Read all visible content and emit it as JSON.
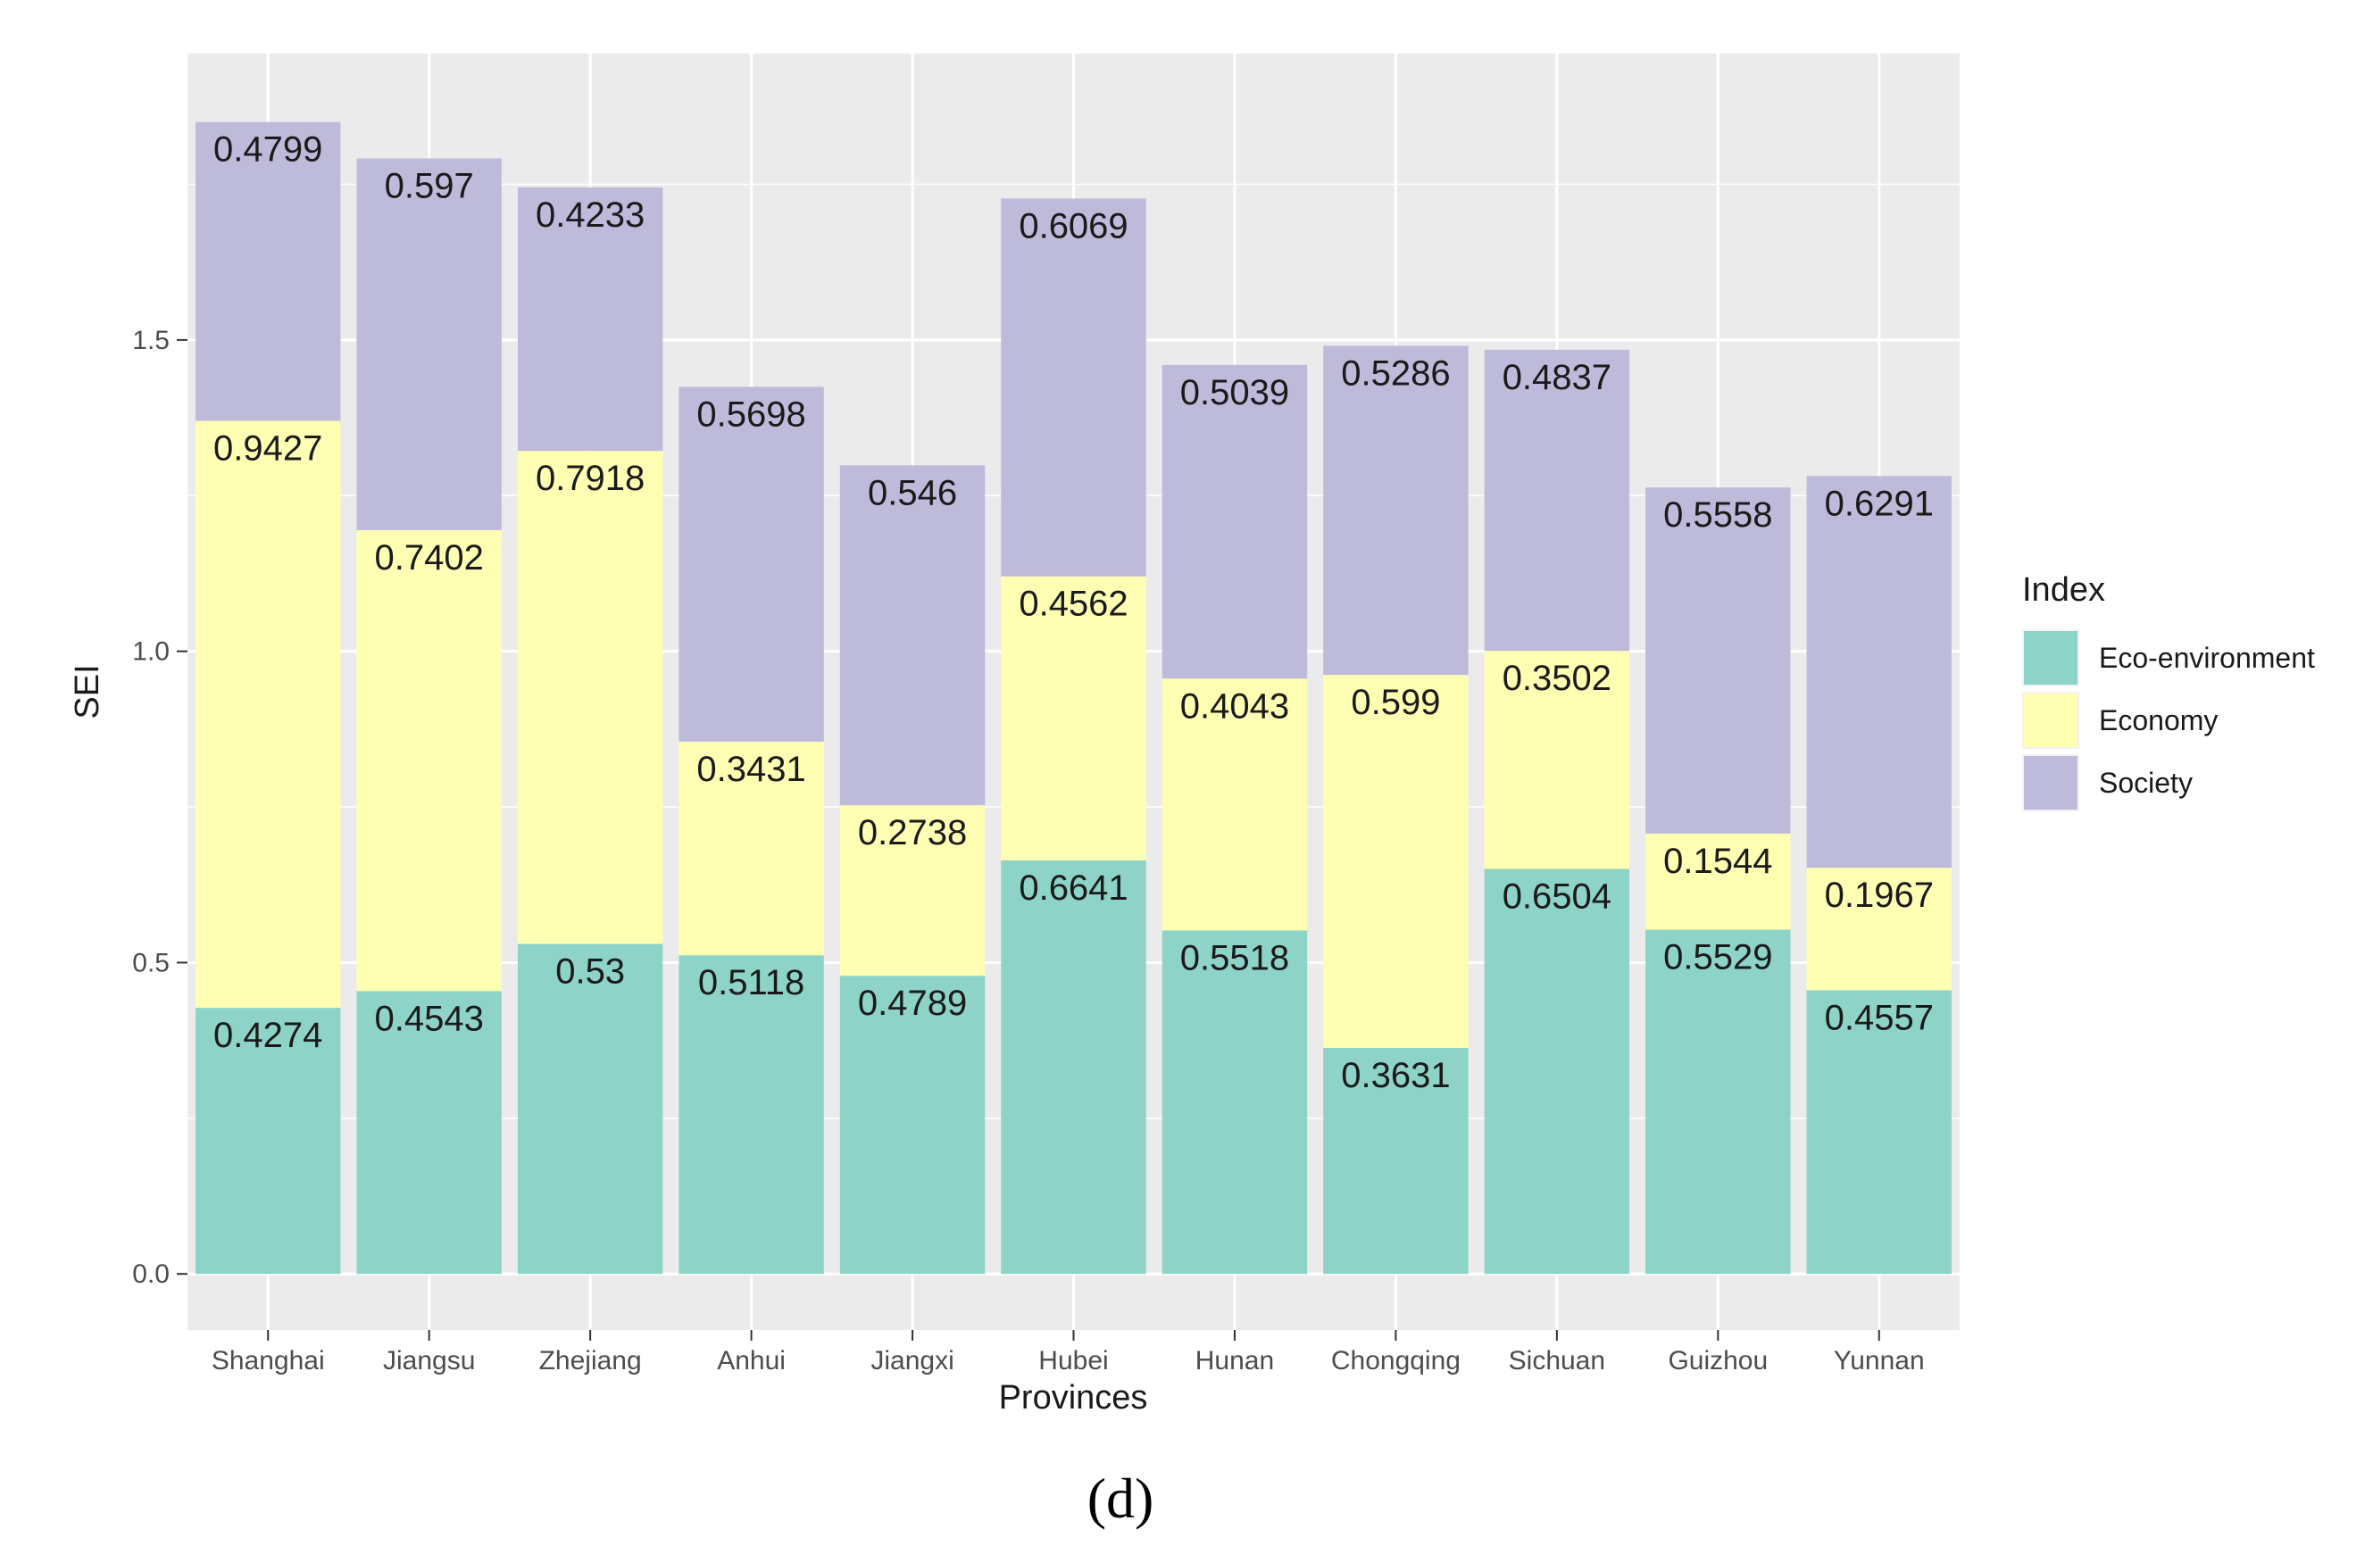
{
  "chart_data": {
    "type": "bar",
    "stacked": true,
    "categories": [
      "Shanghai",
      "Jiangsu",
      "Zhejiang",
      "Anhui",
      "Jiangxi",
      "Hubei",
      "Hunan",
      "Chongqing",
      "Sichuan",
      "Guizhou",
      "Yunnan"
    ],
    "series": [
      {
        "name": "Eco-environment",
        "color": "#8dd3c7",
        "values": [
          0.4274,
          0.4543,
          0.53,
          0.5118,
          0.4789,
          0.6641,
          0.5518,
          0.3631,
          0.6504,
          0.5529,
          0.4557
        ]
      },
      {
        "name": "Economy",
        "color": "#ffffb3",
        "values": [
          0.9427,
          0.7402,
          0.7918,
          0.3431,
          0.2738,
          0.4562,
          0.4043,
          0.599,
          0.3502,
          0.1544,
          0.1967
        ]
      },
      {
        "name": "Society",
        "color": "#bebada",
        "values": [
          0.4799,
          0.597,
          0.4233,
          0.5698,
          0.546,
          0.6069,
          0.5039,
          0.5286,
          0.4837,
          0.5558,
          0.6291
        ]
      }
    ],
    "xlabel": "Provinces",
    "ylabel": "SEI",
    "ylim": [
      -0.09,
      1.96
    ],
    "yticks": [
      0.0,
      0.5,
      1.0,
      1.5
    ],
    "ytick_labels": [
      "0.0",
      "0.5",
      "1.0",
      "1.5"
    ],
    "legend_title": "Index",
    "legend_position": "right",
    "grid": true,
    "panel_label": "(d)",
    "colors": {
      "panel_background": "#ebebeb",
      "grid_major": "#ffffff",
      "text": "#1a1a1a"
    }
  }
}
